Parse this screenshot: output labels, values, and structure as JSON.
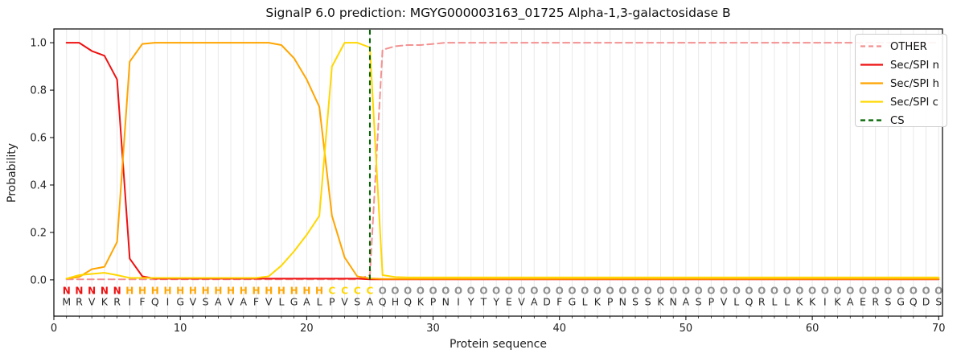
{
  "chart_data": {
    "type": "line",
    "title": "SignalP 6.0 prediction: MGYG000003163_01725 Alpha-1,3-galactosidase B",
    "xlabel": "Protein sequence",
    "ylabel": "Probability",
    "x_unit": "residue index 1-70",
    "xlim": [
      0,
      70.3
    ],
    "ylim": [
      -0.153,
      1.058
    ],
    "xticks": [
      0,
      10,
      20,
      30,
      40,
      50,
      60,
      70
    ],
    "yticks": [
      0.0,
      0.2,
      0.4,
      0.6,
      0.8,
      1.0
    ],
    "grid": "vertical line per residue",
    "legend_position": "upper right",
    "sequence": "MRVKRIFQIGVSAVAFVLGALPVSAQHQKPNIYTYEVADFGLKPNSSKNASPVLQRLLKKIKAERSGQDS",
    "region_labels": "NNNNNHHHHHHHHHHHHHHHHCCCCOOOOOOOOOOOOOOOOOOOOOOOOOOOOOOOOOOOOOOOOOOOOO",
    "series": [
      {
        "name": "OTHER",
        "color": "#f39191",
        "dash": true,
        "values": [
          0.002,
          0.002,
          0.002,
          0.002,
          0.002,
          0.002,
          0.002,
          0.002,
          0.002,
          0.002,
          0.002,
          0.002,
          0.002,
          0.002,
          0.002,
          0.002,
          0.002,
          0.002,
          0.002,
          0.002,
          0.002,
          0.002,
          0.002,
          0.002,
          0.02,
          0.97,
          0.985,
          0.99,
          0.99,
          0.995,
          1,
          1,
          1,
          1,
          1,
          1,
          1,
          1,
          1,
          1,
          1,
          1,
          1,
          1,
          1,
          1,
          1,
          1,
          1,
          1,
          1,
          1,
          1,
          1,
          1,
          1,
          1,
          1,
          1,
          1,
          1,
          1,
          1,
          1,
          1,
          1,
          1,
          1,
          1,
          1
        ]
      },
      {
        "name": "Sec/SPI n",
        "color": "#ee1111",
        "dash": false,
        "values": [
          1,
          1,
          0.965,
          0.945,
          0.845,
          0.09,
          0.015,
          0.005,
          0.005,
          0.005,
          0.005,
          0.005,
          0.005,
          0.005,
          0.005,
          0.005,
          0.005,
          0.005,
          0.005,
          0.005,
          0.005,
          0.005,
          0.005,
          0.005,
          0.002,
          0.002,
          0.002,
          0.002,
          0.002,
          0.002,
          0.002,
          0.002,
          0.002,
          0.002,
          0.002,
          0.002,
          0.002,
          0.002,
          0.002,
          0.002,
          0.002,
          0.002,
          0.002,
          0.002,
          0.002,
          0.002,
          0.002,
          0.002,
          0.002,
          0.002,
          0.002,
          0.002,
          0.002,
          0.002,
          0.002,
          0.002,
          0.002,
          0.002,
          0.002,
          0.002,
          0.002,
          0.002,
          0.002,
          0.002,
          0.002,
          0.002,
          0.002,
          0.002,
          0.002,
          0.002
        ]
      },
      {
        "name": "Sec/SPI h",
        "color": "#ffa500",
        "dash": false,
        "values": [
          0.005,
          0.012,
          0.045,
          0.055,
          0.16,
          0.92,
          0.995,
          1,
          1,
          1,
          1,
          1,
          1,
          1,
          1,
          1,
          1,
          0.99,
          0.935,
          0.845,
          0.73,
          0.27,
          0.095,
          0.015,
          0.006,
          0.004,
          0.004,
          0.004,
          0.004,
          0.004,
          0.004,
          0.004,
          0.004,
          0.004,
          0.004,
          0.004,
          0.004,
          0.004,
          0.004,
          0.004,
          0.004,
          0.004,
          0.004,
          0.004,
          0.004,
          0.004,
          0.004,
          0.004,
          0.004,
          0.004,
          0.004,
          0.004,
          0.004,
          0.004,
          0.004,
          0.004,
          0.004,
          0.004,
          0.004,
          0.004,
          0.004,
          0.004,
          0.004,
          0.004,
          0.004,
          0.004,
          0.004,
          0.004,
          0.004,
          0.004
        ]
      },
      {
        "name": "Sec/SPI c",
        "color": "#ffd700",
        "dash": false,
        "values": [
          0.005,
          0.02,
          0.025,
          0.03,
          0.02,
          0.008,
          0.008,
          0.008,
          0.008,
          0.008,
          0.008,
          0.008,
          0.008,
          0.008,
          0.008,
          0.008,
          0.015,
          0.06,
          0.12,
          0.19,
          0.27,
          0.9,
          1,
          1,
          0.98,
          0.02,
          0.012,
          0.01,
          0.01,
          0.01,
          0.01,
          0.01,
          0.01,
          0.01,
          0.01,
          0.01,
          0.01,
          0.01,
          0.01,
          0.01,
          0.01,
          0.01,
          0.01,
          0.01,
          0.01,
          0.01,
          0.01,
          0.01,
          0.01,
          0.01,
          0.01,
          0.01,
          0.01,
          0.01,
          0.01,
          0.01,
          0.01,
          0.01,
          0.01,
          0.01,
          0.01,
          0.01,
          0.01,
          0.01,
          0.01,
          0.01,
          0.01,
          0.01,
          0.01,
          0.01
        ]
      }
    ],
    "cs_marker": {
      "x": 25,
      "label": "CS",
      "color": "#006400",
      "style": "dashed-vertical"
    },
    "colors": {
      "region_N": "#ee1111",
      "region_H": "#ffa500",
      "region_C": "#ffd700",
      "region_O": "#8f8f8f",
      "sequence_text": "#2b2b2b",
      "grid": "#e9e9e9",
      "axis": "#000000",
      "legend_border": "#cccccc",
      "background": "#ffffff"
    }
  }
}
